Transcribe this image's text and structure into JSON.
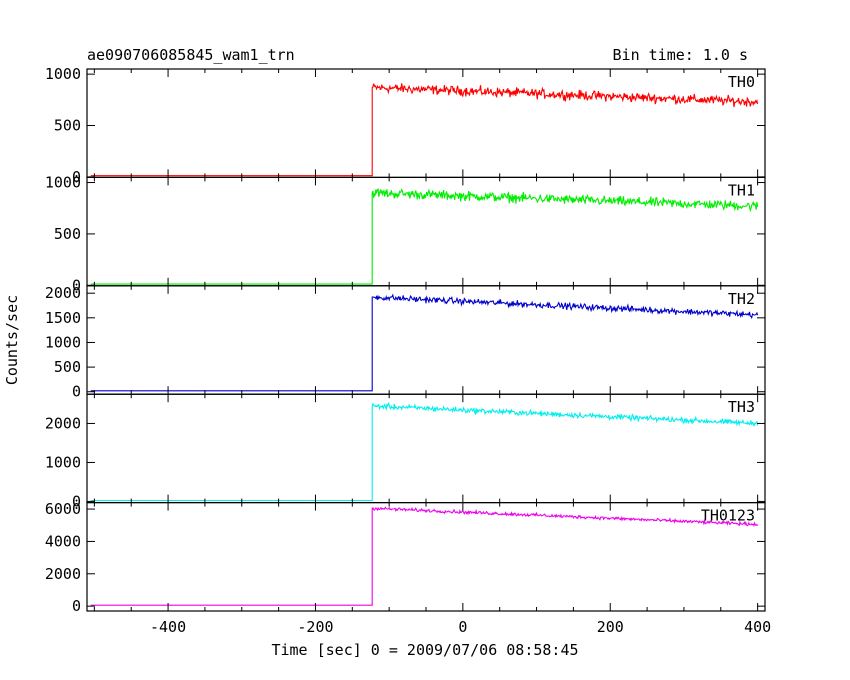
{
  "header": {
    "title": "ae090706085845_wam1_trn",
    "bin_time": "Bin time: 1.0 s"
  },
  "chart_data": {
    "type": "line",
    "xlabel": "Time [sec] 0 = 2009/07/06 08:58:45",
    "ylabel": "Counts/sec",
    "xlim": [
      -510,
      410
    ],
    "x_ticks": [
      -400,
      -200,
      0,
      200,
      400
    ],
    "grid": false,
    "onset_time": -123,
    "panels": [
      {
        "name": "TH0",
        "color": "#ff0000",
        "ylim": [
          -5,
          1050
        ],
        "y_ticks": [
          0,
          500,
          1000
        ],
        "pre_level": 12,
        "post_start": 870,
        "post_end": 730,
        "noise": 38
      },
      {
        "name": "TH1",
        "color": "#00ee00",
        "ylim": [
          -5,
          1050
        ],
        "y_ticks": [
          0,
          500,
          1000
        ],
        "pre_level": 12,
        "post_start": 900,
        "post_end": 770,
        "noise": 38
      },
      {
        "name": "TH2",
        "color": "#0000cc",
        "ylim": [
          -50,
          2150
        ],
        "y_ticks": [
          0,
          500,
          1000,
          1500,
          2000
        ],
        "pre_level": 20,
        "post_start": 1920,
        "post_end": 1560,
        "noise": 50
      },
      {
        "name": "TH3",
        "color": "#00eeee",
        "ylim": [
          -30,
          2750
        ],
        "y_ticks": [
          0,
          1000,
          2000
        ],
        "pre_level": 25,
        "post_start": 2450,
        "post_end": 2000,
        "noise": 55
      },
      {
        "name": "TH0123",
        "color": "#ee00ee",
        "ylim": [
          -300,
          6400
        ],
        "y_ticks": [
          0,
          2000,
          4000,
          6000
        ],
        "pre_level": 60,
        "post_start": 6050,
        "post_end": 5050,
        "noise": 80
      }
    ]
  }
}
